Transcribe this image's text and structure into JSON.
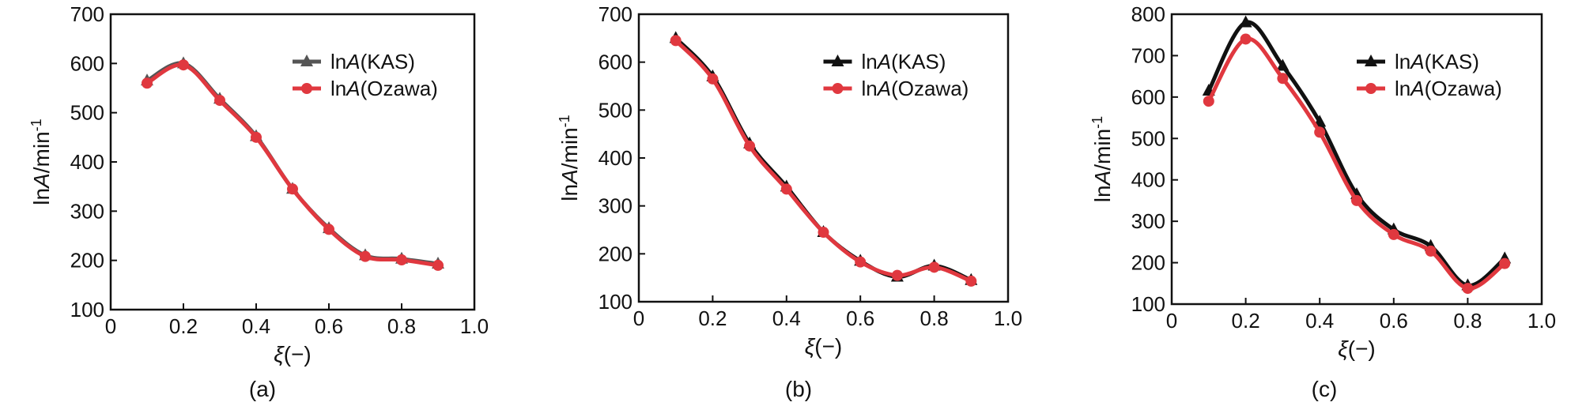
{
  "chart_data": [
    {
      "type": "line",
      "panel_label": "(a)",
      "xlabel": {
        "sym": "ξ",
        "unit": "(−)"
      },
      "ylabel": {
        "pre": "ln",
        "sym": "A",
        "post": "/min",
        "sup": "-1"
      },
      "xlim": [
        0,
        1.0
      ],
      "ylim": [
        100,
        700
      ],
      "xticks": [
        "0",
        "0.2",
        "0.4",
        "0.6",
        "0.8",
        "1.0"
      ],
      "yticks": [
        "100",
        "200",
        "300",
        "400",
        "500",
        "600",
        "700"
      ],
      "legend_position": "top-right",
      "series": [
        {
          "name_pre": "ln",
          "name_sym": "A",
          "name_post": "(KAS)",
          "marker": "triangle",
          "color": "#555555",
          "x": [
            0.1,
            0.2,
            0.3,
            0.4,
            0.5,
            0.6,
            0.7,
            0.8,
            0.9
          ],
          "y": [
            565,
            600,
            528,
            452,
            345,
            265,
            210,
            203,
            193
          ]
        },
        {
          "name_pre": "ln",
          "name_sym": "A",
          "name_post": "(Ozawa)",
          "marker": "circle",
          "color": "#e0383f",
          "x": [
            0.1,
            0.2,
            0.3,
            0.4,
            0.5,
            0.6,
            0.7,
            0.8,
            0.9
          ],
          "y": [
            560,
            597,
            525,
            450,
            345,
            263,
            208,
            201,
            190
          ]
        }
      ]
    },
    {
      "type": "line",
      "panel_label": "(b)",
      "xlabel": {
        "sym": "ξ",
        "unit": "(−)"
      },
      "ylabel": {
        "pre": "ln",
        "sym": "A",
        "post": "/min",
        "sup": "-1"
      },
      "xlim": [
        0,
        1.0
      ],
      "ylim": [
        100,
        700
      ],
      "xticks": [
        "0",
        "0.2",
        "0.4",
        "0.6",
        "0.8",
        "1.0"
      ],
      "yticks": [
        "100",
        "200",
        "300",
        "400",
        "500",
        "600",
        "700"
      ],
      "legend_position": "top-right",
      "series": [
        {
          "name_pre": "ln",
          "name_sym": "A",
          "name_post": "(KAS)",
          "marker": "triangle",
          "color": "#111111",
          "x": [
            0.1,
            0.2,
            0.3,
            0.4,
            0.5,
            0.6,
            0.7,
            0.8,
            0.9
          ],
          "y": [
            650,
            570,
            430,
            340,
            245,
            185,
            152,
            175,
            145
          ]
        },
        {
          "name_pre": "ln",
          "name_sym": "A",
          "name_post": "(Ozawa)",
          "marker": "circle",
          "color": "#e0383f",
          "x": [
            0.1,
            0.2,
            0.3,
            0.4,
            0.5,
            0.6,
            0.7,
            0.8,
            0.9
          ],
          "y": [
            645,
            565,
            425,
            335,
            245,
            183,
            155,
            172,
            143
          ]
        }
      ]
    },
    {
      "type": "line",
      "panel_label": "(c)",
      "xlabel": {
        "sym": "ξ",
        "unit": "(−)"
      },
      "ylabel": {
        "pre": "ln",
        "sym": "A",
        "post": "/min",
        "sup": "-1"
      },
      "xlim": [
        0,
        1.0
      ],
      "ylim": [
        100,
        800
      ],
      "xticks": [
        "0",
        "0.2",
        "0.4",
        "0.6",
        "0.8",
        "1.0"
      ],
      "yticks": [
        "100",
        "200",
        "300",
        "400",
        "500",
        "600",
        "700",
        "800"
      ],
      "legend_position": "top-right",
      "series": [
        {
          "name_pre": "ln",
          "name_sym": "A",
          "name_post": "(KAS)",
          "marker": "triangle",
          "color": "#111111",
          "x": [
            0.1,
            0.2,
            0.3,
            0.4,
            0.5,
            0.6,
            0.7,
            0.8,
            0.9
          ],
          "y": [
            615,
            780,
            675,
            540,
            365,
            280,
            240,
            145,
            210
          ]
        },
        {
          "name_pre": "ln",
          "name_sym": "A",
          "name_post": "(Ozawa)",
          "marker": "circle",
          "color": "#e0383f",
          "x": [
            0.1,
            0.2,
            0.3,
            0.4,
            0.5,
            0.6,
            0.7,
            0.8,
            0.9
          ],
          "y": [
            590,
            740,
            645,
            515,
            350,
            268,
            228,
            138,
            198
          ]
        }
      ]
    }
  ]
}
